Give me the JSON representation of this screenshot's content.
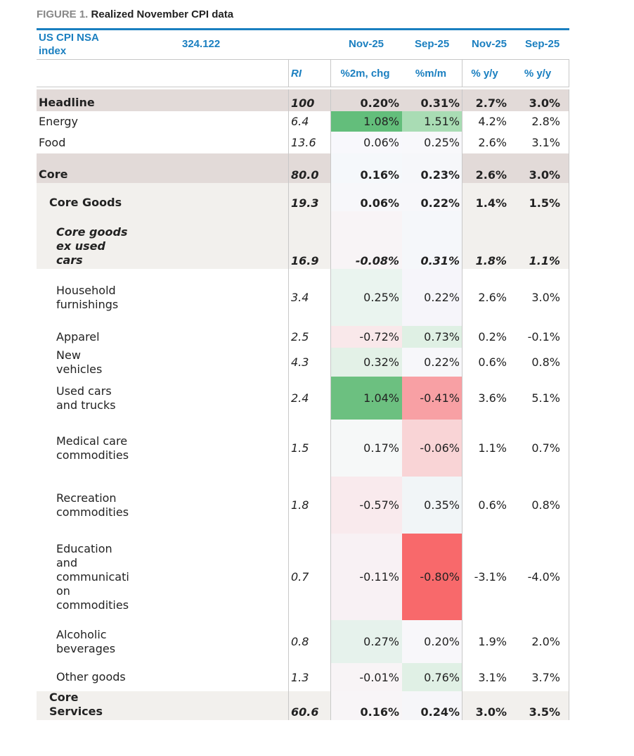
{
  "title": {
    "prefix": "FIGURE 1.",
    "text": "Realized November CPI data"
  },
  "header": {
    "index_label": "US CPI NSA index",
    "index_value": "324.122",
    "cols": [
      "Nov-25",
      "Sep-25",
      "Nov-25",
      "Sep-25"
    ],
    "subcols": [
      "RI",
      "%2m, chg",
      "%m/m",
      "% y/y",
      "% y/y"
    ]
  },
  "colors": {
    "accent": "#1a7fc0",
    "major_row": "#e2dad8",
    "sub_row": "#f2f0ed"
  },
  "rows": [
    {
      "label": "Headline",
      "ri": "100",
      "v": [
        "0.20%",
        "0.31%",
        "2.7%",
        "3.0%"
      ],
      "style": "major",
      "bg": [
        "",
        ""
      ]
    },
    {
      "label": "Energy",
      "ri": "6.4",
      "v": [
        "1.08%",
        "1.51%",
        "4.2%",
        "2.8%"
      ],
      "style": "plain",
      "bg": [
        "#63be7b",
        "#a9dcb4"
      ]
    },
    {
      "label": "Food",
      "ri": "13.6",
      "v": [
        "0.06%",
        "0.25%",
        "2.6%",
        "3.1%"
      ],
      "style": "plain",
      "bg": [
        "#f8f8fc",
        "#f8f8fb"
      ]
    },
    {
      "label": "Core",
      "ri": "80.0",
      "v": [
        "0.16%",
        "0.23%",
        "2.6%",
        "3.0%"
      ],
      "style": "major",
      "bg": [
        "#f5f8fb",
        "#f6f7fa"
      ]
    },
    {
      "label": "Core Goods",
      "ri": "19.3",
      "v": [
        "0.06%",
        "0.22%",
        "1.4%",
        "1.5%"
      ],
      "style": "sub",
      "bg": [
        "#f7f7fa",
        "#f7f7fa"
      ]
    },
    {
      "label": "Core goods ex used cars",
      "ri": "16.9",
      "v": [
        "-0.08%",
        "0.31%",
        "1.8%",
        "1.1%"
      ],
      "style": "subitalic",
      "bg": [
        "#f8f4f6",
        "#f5f7fa"
      ]
    },
    {
      "label": "Household furnishings",
      "ri": "3.4",
      "v": [
        "0.25%",
        "0.22%",
        "2.6%",
        "3.0%"
      ],
      "style": "item",
      "bg": [
        "#eaf4ef",
        "#f6f5fa"
      ]
    },
    {
      "label": "Apparel",
      "ri": "2.5",
      "v": [
        "-0.72%",
        "0.73%",
        "0.2%",
        "-0.1%"
      ],
      "style": "item",
      "bg": [
        "#f9e8ea",
        "#dff0e4"
      ]
    },
    {
      "label": "New vehicles",
      "ri": "4.3",
      "v": [
        "0.32%",
        "0.22%",
        "0.6%",
        "0.8%"
      ],
      "style": "item",
      "bg": [
        "#e3f1e7",
        "#f7f7fa"
      ]
    },
    {
      "label": "Used cars and trucks",
      "ri": "2.4",
      "v": [
        "1.04%",
        "-0.41%",
        "3.6%",
        "5.1%"
      ],
      "style": "item",
      "bg": [
        "#6cc080",
        "#f8a0a4"
      ]
    },
    {
      "label": "Medical care commodities",
      "ri": "1.5",
      "v": [
        "0.17%",
        "-0.06%",
        "1.1%",
        "0.7%"
      ],
      "style": "item",
      "bg": [
        "#f6f8f8",
        "#f9d4d6"
      ]
    },
    {
      "label": "Recreation commodities",
      "ri": "1.8",
      "v": [
        "-0.57%",
        "0.35%",
        "0.6%",
        "0.8%"
      ],
      "style": "item",
      "bg": [
        "#f9eaed",
        "#f1f5f7"
      ]
    },
    {
      "label": "Education and communication commodities",
      "ri": "0.7",
      "v": [
        "-0.11%",
        "-0.80%",
        "-3.1%",
        "-4.0%"
      ],
      "style": "item",
      "bg": [
        "#f8f1f4",
        "#f8696b"
      ]
    },
    {
      "label": "Alcoholic beverages",
      "ri": "0.8",
      "v": [
        "0.27%",
        "0.20%",
        "1.9%",
        "2.0%"
      ],
      "style": "item",
      "bg": [
        "#e6f2ec",
        "#f8f7fa"
      ]
    },
    {
      "label": "Other goods",
      "ri": "1.3",
      "v": [
        "-0.01%",
        "0.76%",
        "3.1%",
        "3.7%"
      ],
      "style": "item",
      "bg": [
        "#f8f4f6",
        "#e0f0e5"
      ]
    },
    {
      "label": "Core Services",
      "ri": "60.6",
      "v": [
        "0.16%",
        "0.24%",
        "3.0%",
        "3.5%"
      ],
      "style": "sub",
      "bg": [
        "#f8f5f7",
        "#f6f6f9"
      ]
    }
  ]
}
